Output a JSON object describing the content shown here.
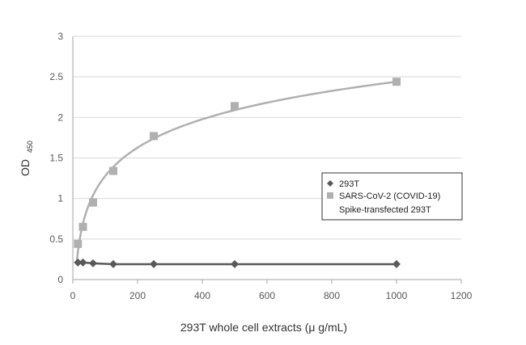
{
  "colors": {
    "series_dark": "#595959",
    "series_light": "#b0b0b0",
    "grid": "#d9d9d9",
    "axis": "#a6a6a6"
  },
  "chart_data": {
    "type": "scatter",
    "title": "",
    "xlabel": "293T whole cell extracts (μ g/mL)",
    "ylabel_main": "OD",
    "ylabel_sub": "450",
    "xlim": [
      0,
      1200
    ],
    "ylim": [
      0,
      3
    ],
    "x_ticks": [
      "0",
      "200",
      "400",
      "600",
      "800",
      "1000",
      "1200"
    ],
    "y_ticks": [
      "0",
      "0.5",
      "1",
      "1.5",
      "2",
      "2.5",
      "3"
    ],
    "grid": "horizontal",
    "legend_position": "right",
    "series": [
      {
        "name": "293T",
        "marker": "diamond",
        "connect": "line",
        "x": [
          15.6,
          31.25,
          62.5,
          125,
          250,
          500,
          1000
        ],
        "y": [
          0.21,
          0.21,
          0.2,
          0.19,
          0.19,
          0.19,
          0.19
        ]
      },
      {
        "name_lines": [
          "SARS-CoV-2 (COVID-19)",
          "Spike-transfected 293T"
        ],
        "marker": "square",
        "connect": "log-trend",
        "x": [
          15.6,
          31.25,
          62.5,
          125,
          250,
          500,
          1000
        ],
        "y": [
          0.44,
          0.65,
          0.95,
          1.34,
          1.77,
          2.14,
          2.44
        ]
      }
    ]
  }
}
